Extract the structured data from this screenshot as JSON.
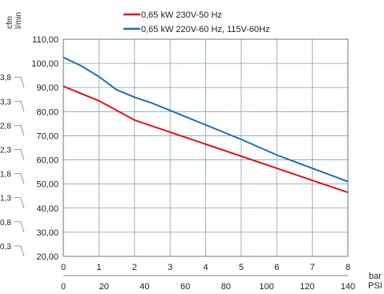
{
  "chart_data": {
    "type": "line",
    "legend_placement": "top",
    "grid": true,
    "unit_labels": {
      "cfm": "cfm",
      "lmin": "l/min",
      "bar": "bar",
      "psi": "PSI"
    },
    "x_bar": {
      "ticks": [
        0,
        1,
        2,
        3,
        4,
        5,
        6,
        7,
        8
      ],
      "xlim": [
        0,
        8
      ]
    },
    "x_psi": {
      "ticks": [
        0,
        20,
        40,
        60,
        80,
        100,
        120,
        140
      ],
      "xlim": [
        0,
        140
      ]
    },
    "y_lmin": {
      "ylim": [
        20,
        110
      ],
      "ticks": [
        20,
        30,
        40,
        50,
        60,
        70,
        80,
        90,
        100,
        110
      ],
      "tick_labels": [
        "20,00",
        "30,00",
        "40,00",
        "50,00",
        "60,00",
        "70,00",
        "80,00",
        "90,00",
        "100,00",
        "110,00"
      ]
    },
    "y_cfm": {
      "tick_labels": [
        "0,3",
        "0,8",
        "1,3",
        "1,8",
        "2,3",
        "2,8",
        "3,3",
        "3,8"
      ]
    },
    "series": [
      {
        "name": "0,65 kW 230V-50 Hz",
        "color": "#e0121c",
        "x": [
          0,
          1,
          2,
          3,
          4,
          5,
          6,
          7,
          8
        ],
        "y": [
          90.5,
          84.5,
          76.5,
          71.5,
          66.5,
          61.5,
          56.5,
          51.5,
          46.5
        ]
      },
      {
        "name": "0,65 kW 220V-60 Hz, 115V-60Hz",
        "color": "#1f6fb5",
        "x": [
          0,
          0.5,
          1,
          1.5,
          2,
          2.5,
          3,
          4,
          5,
          6,
          7,
          8
        ],
        "y": [
          102.5,
          99.0,
          94.5,
          89.0,
          86.0,
          83.5,
          80.5,
          74.5,
          68.5,
          62.0,
          56.5,
          51.0
        ]
      }
    ]
  }
}
